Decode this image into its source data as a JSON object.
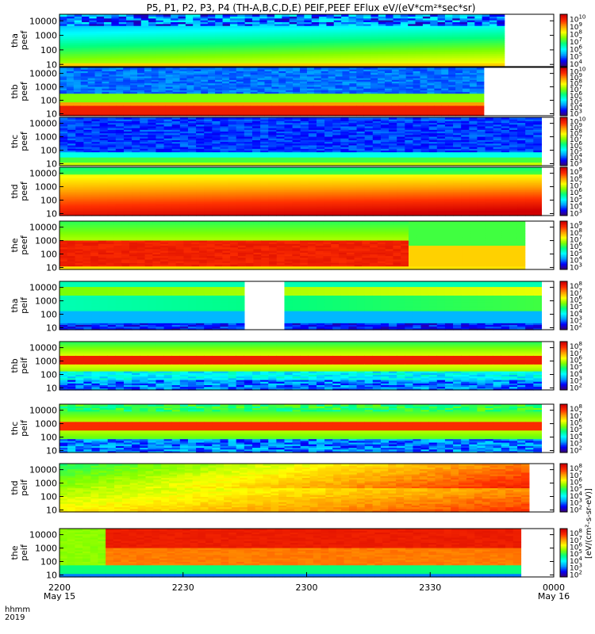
{
  "chart_data": {
    "type": "heatmap",
    "title": "P5, P1, P2, P3, P4 (TH-A,B,C,D,E) PEIF,PEEF EFlux eV/(eV*cm²*sec*sr)",
    "x_axis": {
      "row_labels": [
        "hhmm",
        "2019"
      ],
      "ticks": [
        {
          "time": "2200",
          "date": "May 15"
        },
        {
          "time": "2230",
          "date": ""
        },
        {
          "time": "2300",
          "date": ""
        },
        {
          "time": "2330",
          "date": ""
        },
        {
          "time": "0000",
          "date": "May 16"
        }
      ],
      "range_minutes": [
        0,
        120
      ]
    },
    "y_scale": "log",
    "y_ticks": [
      "10000",
      "1000",
      "100",
      "10"
    ],
    "colorbar_label": "[eV/(cm²-s-sr-eV)]",
    "colorbar_title": "eV/(eV*cm²*sec*sr)",
    "colormap": [
      "#3b0070",
      "#0000ff",
      "#00a0ff",
      "#00ffff",
      "#00ff80",
      "#80ff00",
      "#ffff00",
      "#ffa000",
      "#ff3000",
      "#d00000"
    ],
    "panels": [
      {
        "label": [
          "tha",
          "peef"
        ],
        "cb_exp": [
          4,
          5,
          6,
          7,
          8,
          9,
          10
        ],
        "data_end_min": 108,
        "profile": "tha_peef"
      },
      {
        "label": [
          "thb",
          "peef"
        ],
        "cb_exp": [
          3,
          4,
          5,
          6,
          7,
          8,
          9,
          10
        ],
        "data_end_min": 103,
        "profile": "thb_peef"
      },
      {
        "label": [
          "thc",
          "peef"
        ],
        "cb_exp": [
          3,
          4,
          5,
          6,
          7,
          8,
          9,
          10
        ],
        "data_end_min": 117,
        "profile": "thc_peef"
      },
      {
        "label": [
          "thd",
          "peef"
        ],
        "cb_exp": [
          3,
          4,
          5,
          6,
          7,
          8,
          9
        ],
        "data_end_min": 117,
        "profile": "thd_peef"
      },
      {
        "label": [
          "the",
          "peef"
        ],
        "cb_exp": [
          3,
          4,
          5,
          6,
          7,
          8,
          9
        ],
        "data_end_min": 113,
        "profile": "the_peef"
      },
      {
        "label": [
          "tha",
          "peif"
        ],
        "cb_exp": [
          2,
          3,
          4,
          5,
          6,
          7,
          8
        ],
        "data_end_min": 117,
        "gap_min": [
          44,
          55
        ],
        "profile": "tha_peif"
      },
      {
        "label": [
          "thb",
          "peif"
        ],
        "cb_exp": [
          2,
          3,
          4,
          5,
          6,
          7,
          8
        ],
        "data_end_min": 117,
        "profile": "thb_peif"
      },
      {
        "label": [
          "thc",
          "peif"
        ],
        "cb_exp": [
          2,
          3,
          4,
          5,
          6,
          7,
          8
        ],
        "data_end_min": 117,
        "profile": "thc_peif"
      },
      {
        "label": [
          "thd",
          "peif"
        ],
        "cb_exp": [
          2,
          3,
          4,
          5,
          6,
          7,
          8
        ],
        "data_end_min": 114,
        "profile": "thd_peif"
      },
      {
        "label": [
          "the",
          "peif"
        ],
        "cb_exp": [
          2,
          3,
          4,
          5,
          6,
          7,
          8
        ],
        "data_end_min": 112,
        "profile": "the_peif"
      }
    ]
  }
}
